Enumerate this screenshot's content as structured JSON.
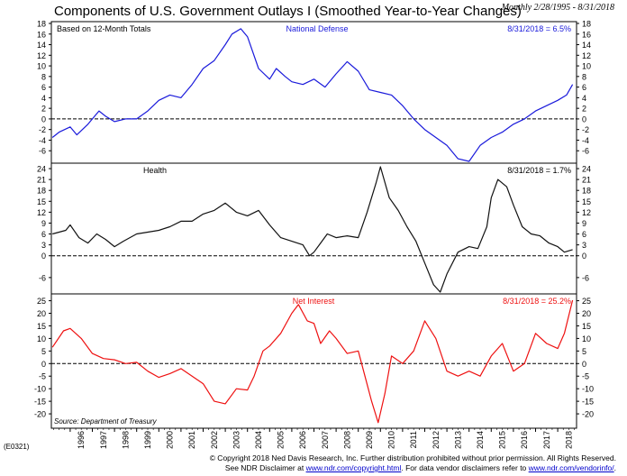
{
  "header": {
    "title": "Components of U.S. Government Outlays I (Smoothed Year-to-Year Changes)",
    "date_range": "Monthly 2/28/1995 - 8/31/2018",
    "code": "(E0321)"
  },
  "footer": {
    "line1": "© Copyright 2018 Ned Davis Research, Inc.  Further distribution prohibited without prior permission.  All Rights Reserved.",
    "line2_prefix": "See NDR Disclaimer at ",
    "link1": "www.ndr.com/copyright.html",
    "line2_middle": ". For data vendor disclaimers refer to ",
    "link2": "www.ndr.com/vendorinfo/",
    "line2_suffix": "."
  },
  "chart_data": [
    {
      "type": "line",
      "title": "National Defense",
      "note": "Based on 12-Month Totals",
      "latest_label": "8/31/2018 = 6.5%",
      "color": "#1a1adb",
      "ylim": [
        -8,
        18
      ],
      "yticks": [
        -6,
        -4,
        -2,
        0,
        2,
        4,
        6,
        8,
        10,
        12,
        14,
        16,
        18
      ],
      "reference_line": 0,
      "x": [
        1995.2,
        1995.5,
        1996.0,
        1996.3,
        1996.8,
        1997.3,
        1997.6,
        1998.0,
        1998.5,
        1999.0,
        1999.5,
        2000.0,
        2000.5,
        2001.0,
        2001.5,
        2002.0,
        2002.5,
        2003.0,
        2003.3,
        2003.7,
        2004.0,
        2004.5,
        2005.0,
        2005.3,
        2005.7,
        2006.0,
        2006.5,
        2007.0,
        2007.5,
        2008.0,
        2008.5,
        2009.0,
        2009.5,
        2010.0,
        2010.5,
        2011.0,
        2011.5,
        2012.0,
        2012.5,
        2013.0,
        2013.5,
        2014.0,
        2014.5,
        2015.0,
        2015.5,
        2016.0,
        2016.5,
        2017.0,
        2017.5,
        2018.0,
        2018.4,
        2018.67
      ],
      "values": [
        -3.5,
        -2.5,
        -1.5,
        -3.0,
        -1.0,
        1.5,
        0.5,
        -0.5,
        0.0,
        0.0,
        1.5,
        3.5,
        4.5,
        4.0,
        6.5,
        9.5,
        11.0,
        14.0,
        16.0,
        17.0,
        15.5,
        9.5,
        7.5,
        9.5,
        8.0,
        7.0,
        6.5,
        7.5,
        6.0,
        8.5,
        10.8,
        9.0,
        5.5,
        5.0,
        4.5,
        2.5,
        0.0,
        -2.0,
        -3.5,
        -5.0,
        -7.5,
        -8.0,
        -5.0,
        -3.5,
        -2.5,
        -1.0,
        0.0,
        1.5,
        2.5,
        3.5,
        4.5,
        6.5
      ]
    },
    {
      "type": "line",
      "title": "Health",
      "latest_label": "8/31/2018 = 1.7%",
      "color": "#111111",
      "ylim": [
        -10,
        25
      ],
      "yticks": [
        -6,
        0,
        3,
        6,
        9,
        12,
        15,
        18,
        21,
        24
      ],
      "reference_line": 0,
      "x": [
        1995.2,
        1995.8,
        1996.0,
        1996.4,
        1996.8,
        1997.2,
        1997.6,
        1998.0,
        1998.4,
        1999.0,
        1999.5,
        2000.0,
        2000.5,
        2001.0,
        2001.5,
        2002.0,
        2002.5,
        2003.0,
        2003.5,
        2004.0,
        2004.5,
        2005.0,
        2005.5,
        2006.0,
        2006.5,
        2006.8,
        2007.0,
        2007.3,
        2007.6,
        2008.0,
        2008.5,
        2009.0,
        2009.4,
        2009.8,
        2010.0,
        2010.4,
        2010.8,
        2011.2,
        2011.6,
        2012.0,
        2012.4,
        2012.7,
        2013.0,
        2013.5,
        2014.0,
        2014.4,
        2014.8,
        2015.0,
        2015.3,
        2015.7,
        2016.0,
        2016.4,
        2016.8,
        2017.2,
        2017.6,
        2018.0,
        2018.3,
        2018.67
      ],
      "values": [
        6.0,
        7.0,
        8.5,
        5.0,
        3.5,
        6.0,
        4.5,
        2.5,
        4.0,
        6.0,
        6.5,
        7.0,
        8.0,
        9.5,
        9.5,
        11.5,
        12.5,
        14.5,
        12.0,
        11.0,
        12.5,
        8.5,
        5.0,
        4.0,
        3.0,
        0.0,
        1.0,
        3.5,
        6.0,
        5.0,
        5.5,
        5.0,
        12.0,
        20.0,
        24.5,
        16.0,
        12.5,
        8.0,
        4.0,
        -2.0,
        -8.0,
        -10.0,
        -5.0,
        1.0,
        2.5,
        2.0,
        8.0,
        16.0,
        21.0,
        19.0,
        14.0,
        8.0,
        6.0,
        5.5,
        3.5,
        2.5,
        1.0,
        1.7
      ]
    },
    {
      "type": "line",
      "title": "Net Interest",
      "latest_label": "8/31/2018 = 25.2%",
      "color": "#ee1111",
      "ylim": [
        -25,
        27
      ],
      "yticks": [
        -20,
        -15,
        -10,
        -5,
        0,
        5,
        10,
        15,
        20,
        25
      ],
      "reference_line": 0,
      "note_bottom": "Source: Department of Treasury",
      "x": [
        1995.2,
        1995.7,
        1996.0,
        1996.5,
        1997.0,
        1997.5,
        1998.0,
        1998.5,
        1999.0,
        1999.5,
        2000.0,
        2000.5,
        2001.0,
        2001.5,
        2002.0,
        2002.5,
        2003.0,
        2003.5,
        2004.0,
        2004.3,
        2004.7,
        2005.0,
        2005.5,
        2006.0,
        2006.3,
        2006.7,
        2007.0,
        2007.3,
        2007.7,
        2008.0,
        2008.5,
        2009.0,
        2009.3,
        2009.6,
        2009.9,
        2010.2,
        2010.5,
        2011.0,
        2011.5,
        2012.0,
        2012.5,
        2013.0,
        2013.5,
        2014.0,
        2014.5,
        2015.0,
        2015.5,
        2016.0,
        2016.5,
        2017.0,
        2017.5,
        2018.0,
        2018.3,
        2018.67
      ],
      "values": [
        6.5,
        13.0,
        14.0,
        10.0,
        4.0,
        2.0,
        1.5,
        0.0,
        0.5,
        -3.0,
        -5.5,
        -4.0,
        -2.0,
        -5.0,
        -8.0,
        -15.0,
        -16.0,
        -10.0,
        -10.5,
        -5.0,
        5.0,
        7.0,
        12.0,
        20.0,
        23.5,
        17.0,
        16.0,
        8.0,
        13.0,
        10.0,
        4.0,
        5.0,
        -5.0,
        -15.0,
        -23.5,
        -12.0,
        3.0,
        0.0,
        5.0,
        17.0,
        10.0,
        -3.0,
        -5.0,
        -3.0,
        -5.0,
        3.0,
        8.0,
        -3.0,
        0.0,
        12.0,
        8.0,
        6.0,
        12.0,
        25.2
      ]
    }
  ],
  "x_axis": {
    "ticks": [
      "1996",
      "1997",
      "1998",
      "1999",
      "2000",
      "2001",
      "2002",
      "2003",
      "2004",
      "2005",
      "2006",
      "2007",
      "2008",
      "2009",
      "2010",
      "2011",
      "2012",
      "2013",
      "2014",
      "2015",
      "2016",
      "2017",
      "2018"
    ]
  }
}
